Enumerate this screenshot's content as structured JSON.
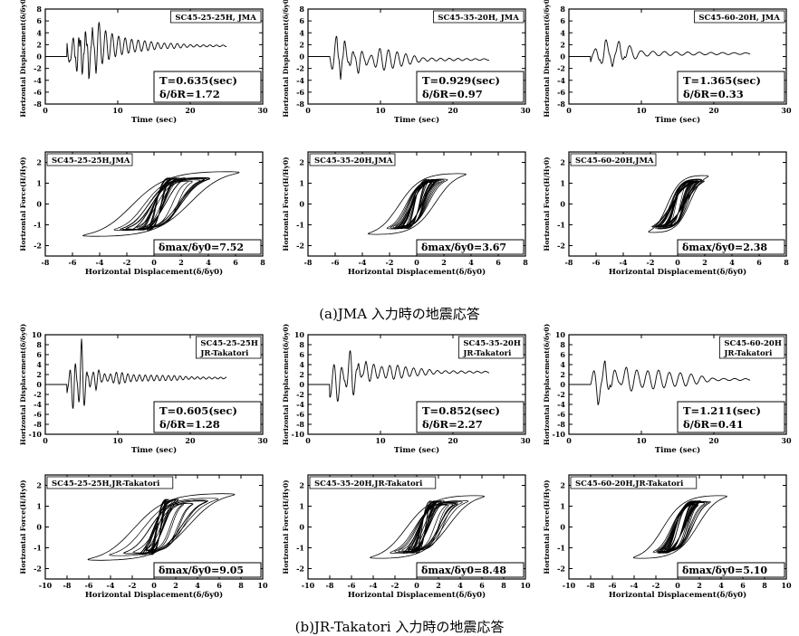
{
  "captions": {
    "a": "(a)JMA 入力時の地震応答",
    "b": "(b)JR-Takatori 入力時の地震応答"
  },
  "labels": {
    "time_x": "Time (sec)",
    "disp_y": "Horizontal Displacement(δ/δy0)",
    "force_y": "Horizontal Force(H/Hy0)",
    "hyst_x": "Horizontal Displacement(δ/δy0)"
  },
  "chart_data": [
    {
      "id": "a-th-1",
      "type": "line",
      "title": "SC45-25-25H, JMA",
      "xlabel": "Time (sec)",
      "ylabel": "Horizontal Displacement(δ/δy0)",
      "xlim": [
        0,
        30
      ],
      "ylim": [
        -8,
        8
      ],
      "xticks": [
        0,
        10,
        20,
        30
      ],
      "yticks": [
        -8,
        -6,
        -4,
        -2,
        0,
        2,
        4,
        6,
        8
      ],
      "x": [
        0,
        3,
        4,
        4.5,
        5,
        5.5,
        6,
        6.5,
        7,
        8,
        9,
        10,
        12,
        14,
        16,
        18,
        20,
        22,
        25
      ],
      "y": [
        0,
        0,
        4.5,
        -3.5,
        7.5,
        -2,
        7,
        -1,
        6,
        4,
        3.5,
        3,
        2.5,
        2.3,
        2,
        2,
        1.8,
        1.8,
        1.8
      ],
      "ann": [
        "T=0.635(sec)",
        "δ/δR=1.72"
      ]
    },
    {
      "id": "a-th-2",
      "type": "line",
      "title": "SC45-35-20H, JMA",
      "xlabel": "Time (sec)",
      "ylabel": "Horizontal Displacement(δ/δy0)",
      "xlim": [
        0,
        30
      ],
      "ylim": [
        -8,
        8
      ],
      "xticks": [
        0,
        10,
        20,
        30
      ],
      "yticks": [
        -8,
        -6,
        -4,
        -2,
        0,
        2,
        4,
        6,
        8
      ],
      "x": [
        0,
        3,
        4,
        4.5,
        5,
        6,
        7,
        8,
        10,
        12,
        14,
        16,
        18,
        20,
        22,
        25
      ],
      "y": [
        0,
        0,
        2.5,
        -3.5,
        2,
        -2,
        1.5,
        -1,
        1,
        0.5,
        0,
        -0.5,
        -0.5,
        -0.5,
        -0.5,
        -0.5
      ],
      "ann": [
        "T=0.929(sec)",
        "δ/δR=0.97"
      ]
    },
    {
      "id": "a-th-3",
      "type": "line",
      "title": "SC45-60-20H, JMA",
      "xlabel": "Time (sec)",
      "ylabel": "Horizontal Displacement(δ/δy0)",
      "xlim": [
        0,
        30
      ],
      "ylim": [
        -8,
        8
      ],
      "xticks": [
        0,
        10,
        20,
        30
      ],
      "yticks": [
        -8,
        -6,
        -4,
        -2,
        0,
        2,
        4,
        6,
        8
      ],
      "x": [
        0,
        3,
        4,
        5,
        6,
        7,
        8,
        10,
        12,
        14,
        16,
        18,
        20,
        22,
        25
      ],
      "y": [
        0,
        0,
        1.5,
        -2,
        2,
        -1.5,
        1.5,
        0.5,
        0.5,
        0.5,
        0.5,
        0.5,
        0.5,
        0.5,
        0.5
      ],
      "ann": [
        "T=1.365(sec)",
        "δ/δR=0.33"
      ]
    },
    {
      "id": "a-hy-1",
      "type": "line",
      "title": "SC45-25-25H,JMA",
      "xlabel": "Horizontal Displacement(δ/δy0)",
      "ylabel": "Horizontal Force(H/Hy0)",
      "xlim": [
        -8,
        8
      ],
      "ylim": [
        -2.5,
        2.5
      ],
      "xticks": [
        -8,
        -6,
        -4,
        -2,
        0,
        2,
        4,
        6,
        8
      ],
      "yticks": [
        -2,
        -1,
        0,
        1,
        2
      ],
      "outer_disp": [
        -4,
        7.5
      ],
      "outer_force": [
        -1.6,
        1.7
      ],
      "ann": [
        "δmax/δy0=7.52"
      ]
    },
    {
      "id": "a-hy-2",
      "type": "line",
      "title": "SC45-35-20H,JMA",
      "xlabel": "Horizontal Displacement(δ/δy0)",
      "ylabel": "Horizontal Force(H/Hy0)",
      "xlim": [
        -8,
        8
      ],
      "ylim": [
        -2.5,
        2.5
      ],
      "xticks": [
        -8,
        -6,
        -4,
        -2,
        0,
        2,
        4,
        6,
        8
      ],
      "yticks": [
        -2,
        -1,
        0,
        1,
        2
      ],
      "outer_disp": [
        -3.5,
        3.7
      ],
      "outer_force": [
        -1.5,
        1.6
      ],
      "ann": [
        "δmax/δy0=3.67"
      ]
    },
    {
      "id": "a-hy-3",
      "type": "line",
      "title": "SC45-60-20H,JMA",
      "xlabel": "Horizontal Displacement(δ/δy0)",
      "ylabel": "Horizontal Force(H/Hy0)",
      "xlim": [
        -8,
        8
      ],
      "ylim": [
        -2.5,
        2.5
      ],
      "xticks": [
        -8,
        -6,
        -4,
        -2,
        0,
        2,
        4,
        6,
        8
      ],
      "yticks": [
        -2,
        -1,
        0,
        1,
        2
      ],
      "outer_disp": [
        -2,
        2.4
      ],
      "outer_force": [
        -1.4,
        1.5
      ],
      "ann": [
        "δmax/δy0=2.38"
      ]
    },
    {
      "id": "b-th-1",
      "type": "line",
      "title": "SC45-25-25H",
      "subtitle": "JR-Takatori",
      "xlabel": "Time (sec)",
      "ylabel": "Horizontal Displacement(δ/δy0)",
      "xlim": [
        0,
        30
      ],
      "ylim": [
        -10,
        10
      ],
      "xticks": [
        0,
        10,
        20,
        30
      ],
      "yticks": [
        -10,
        -8,
        -6,
        -4,
        -2,
        0,
        2,
        4,
        6,
        8,
        10
      ],
      "x": [
        0,
        1,
        2,
        3,
        4,
        4.5,
        5,
        6,
        7,
        8,
        10,
        12,
        14,
        16,
        18,
        20,
        22,
        25
      ],
      "y": [
        0,
        1,
        -1,
        2,
        -4,
        3,
        9,
        0,
        3,
        1,
        2,
        1.5,
        1.5,
        1.5,
        1.5,
        1.3,
        1.3,
        1.3
      ],
      "ann": [
        "T=0.605(sec)",
        "δ/δR=1.28"
      ]
    },
    {
      "id": "b-th-2",
      "type": "line",
      "title": "SC45-35-20H",
      "subtitle": "JR-Takatori",
      "xlabel": "Time (sec)",
      "ylabel": "Horizontal Displacement(δ/δy0)",
      "xlim": [
        0,
        30
      ],
      "ylim": [
        -10,
        10
      ],
      "xticks": [
        0,
        10,
        20,
        30
      ],
      "yticks": [
        -10,
        -8,
        -6,
        -4,
        -2,
        0,
        2,
        4,
        6,
        8,
        10
      ],
      "x": [
        0,
        1,
        2,
        3,
        4,
        5,
        6,
        7,
        8,
        10,
        12,
        14,
        16,
        18,
        20,
        22,
        25
      ],
      "y": [
        0,
        0,
        -1,
        1,
        -1,
        2,
        8,
        1,
        4,
        3,
        3.5,
        3,
        2.8,
        2.5,
        2.5,
        2.5,
        2.5
      ],
      "ann": [
        "T=0.852(sec)",
        "δ/δR=2.27"
      ]
    },
    {
      "id": "b-th-3",
      "type": "line",
      "title": "SC45-60-20H",
      "subtitle": "JR-Takatori",
      "xlabel": "Time (sec)",
      "ylabel": "Horizontal Displacement(δ/δy0)",
      "xlim": [
        0,
        30
      ],
      "ylim": [
        -10,
        10
      ],
      "xticks": [
        0,
        10,
        20,
        30
      ],
      "yticks": [
        -10,
        -8,
        -6,
        -4,
        -2,
        0,
        2,
        4,
        6,
        8,
        10
      ],
      "x": [
        0,
        1,
        2,
        3,
        4,
        5,
        6,
        8,
        10,
        12,
        14,
        16,
        18,
        20,
        22,
        25
      ],
      "y": [
        0,
        0,
        -1,
        1,
        -3,
        5,
        -1,
        3,
        2,
        2.5,
        2,
        2,
        1.5,
        1,
        1,
        1
      ],
      "ann": [
        "T=1.211(sec)",
        "δ/δR=0.41"
      ]
    },
    {
      "id": "b-hy-1",
      "type": "line",
      "title": "SC45-25-25H,JR-Takatori",
      "xlabel": "Horizontal Displacement(δ/δy0)",
      "ylabel": "Horizontal Force(H/Hy0)",
      "xlim": [
        -10,
        10
      ],
      "ylim": [
        -2.5,
        2.5
      ],
      "xticks": [
        -10,
        -8,
        -6,
        -4,
        -2,
        0,
        2,
        4,
        6,
        8,
        10
      ],
      "yticks": [
        -2,
        -1,
        0,
        1,
        2
      ],
      "outer_disp": [
        -4.5,
        9
      ],
      "outer_force": [
        -1.6,
        1.8
      ],
      "ann": [
        "δmax/δy0=9.05"
      ]
    },
    {
      "id": "b-hy-2",
      "type": "line",
      "title": "SC45-35-20H,JR-Takatori",
      "xlabel": "Horizontal Displacement(δ/δy0)",
      "ylabel": "Horizontal Force(H/Hy0)",
      "xlim": [
        -10,
        10
      ],
      "ylim": [
        -2.5,
        2.5
      ],
      "xticks": [
        -10,
        -8,
        -6,
        -4,
        -2,
        0,
        2,
        4,
        6,
        8,
        10
      ],
      "yticks": [
        -2,
        -1,
        0,
        1,
        2
      ],
      "outer_disp": [
        -2,
        8.5
      ],
      "outer_force": [
        -1.5,
        1.7
      ],
      "ann": [
        "δmax/δy0=8.48"
      ]
    },
    {
      "id": "b-hy-3",
      "type": "line",
      "title": "SC45-60-20H,JR-Takatori",
      "xlabel": "Horizontal Displacement(δ/δy0)",
      "ylabel": "Horizontal Force(H/Hy0)",
      "xlim": [
        -10,
        10
      ],
      "ylim": [
        -2.5,
        2.5
      ],
      "xticks": [
        -10,
        -8,
        -6,
        -4,
        -2,
        0,
        2,
        4,
        6,
        8,
        10
      ],
      "yticks": [
        -2,
        -1,
        0,
        1,
        2
      ],
      "outer_disp": [
        -3.5,
        5.1
      ],
      "outer_force": [
        -1.5,
        1.7
      ],
      "ann": [
        "δmax/δy0=5.10"
      ]
    }
  ]
}
